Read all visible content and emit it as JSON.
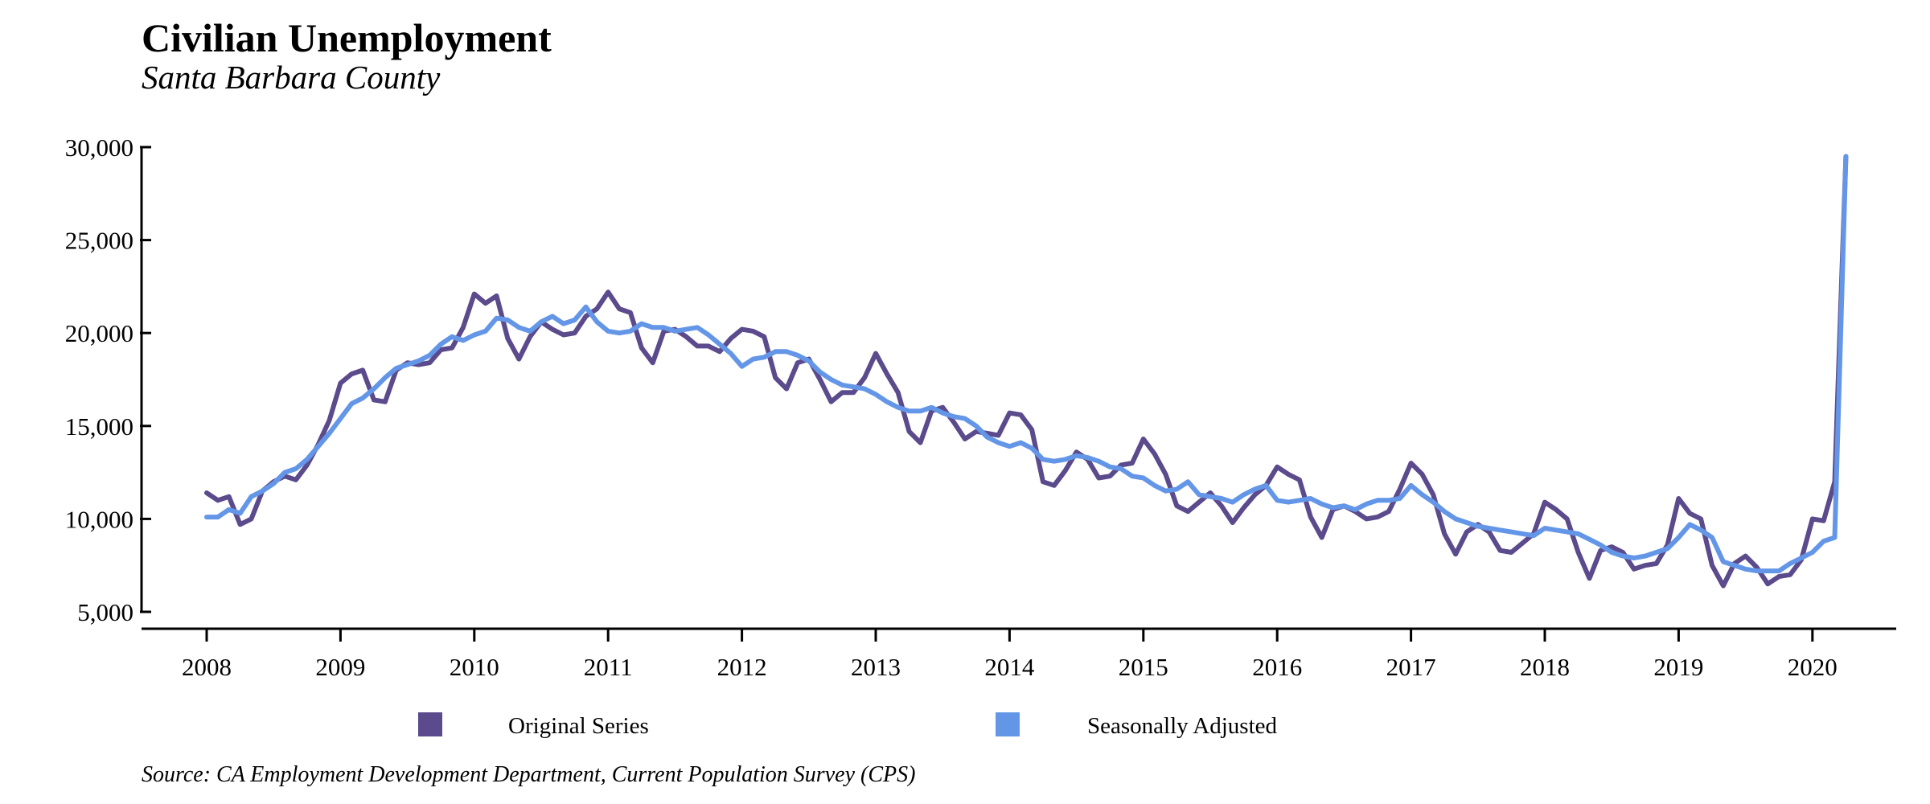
{
  "chart_data": {
    "type": "line",
    "title": "Civilian Unemployment",
    "subtitle": "Santa Barbara County",
    "source": "Source: CA Employment Development Department, Current Population Survey (CPS)",
    "xlabel": "",
    "ylabel": "",
    "ylim": [
      5000,
      30000
    ],
    "yticks": [
      5000,
      10000,
      15000,
      20000,
      25000,
      30000
    ],
    "ytick_labels": [
      "5,000",
      "10,000",
      "15,000",
      "20,000",
      "25,000",
      "30,000"
    ],
    "xlim": [
      2008,
      2020.25
    ],
    "xticks": [
      2008,
      2009,
      2010,
      2011,
      2012,
      2013,
      2014,
      2015,
      2016,
      2017,
      2018,
      2019,
      2020
    ],
    "xtick_labels": [
      "2008",
      "2009",
      "2010",
      "2011",
      "2012",
      "2013",
      "2014",
      "2015",
      "2016",
      "2017",
      "2018",
      "2019",
      "2020"
    ],
    "x_start": "2008-01",
    "x_frequency": "monthly",
    "grid": false,
    "legend_position": "bottom",
    "series": [
      {
        "name": "Original Series",
        "color": "#5b4a8c",
        "values": [
          11400,
          11000,
          11200,
          9700,
          10000,
          11500,
          12000,
          12300,
          12100,
          12900,
          14000,
          15300,
          17300,
          17800,
          18000,
          16400,
          16300,
          18000,
          18400,
          18300,
          18400,
          19100,
          19200,
          20300,
          22100,
          21600,
          22000,
          19700,
          18600,
          19800,
          20600,
          20200,
          19900,
          20000,
          20900,
          21300,
          22200,
          21300,
          21100,
          19200,
          18400,
          20100,
          20200,
          19800,
          19300,
          19300,
          19000,
          19700,
          20200,
          20100,
          19800,
          17600,
          17000,
          18400,
          18600,
          17500,
          16300,
          16800,
          16800,
          17600,
          18900,
          17800,
          16800,
          14700,
          14100,
          15800,
          16000,
          15200,
          14300,
          14700,
          14600,
          14500,
          15700,
          15600,
          14800,
          12000,
          11800,
          12600,
          13600,
          13200,
          12200,
          12300,
          12900,
          13000,
          14300,
          13500,
          12400,
          10700,
          10400,
          10900,
          11400,
          10700,
          9800,
          10600,
          11300,
          11800,
          12800,
          12400,
          12100,
          10100,
          9000,
          10500,
          10700,
          10400,
          10000,
          10100,
          10400,
          11600,
          13000,
          12400,
          11300,
          9200,
          8100,
          9300,
          9700,
          9300,
          8300,
          8200,
          8700,
          9200,
          10900,
          10500,
          10000,
          8200,
          6800,
          8300,
          8500,
          8200,
          7300,
          7500,
          7600,
          8600,
          11100,
          10300,
          10000,
          7500,
          6400,
          7600,
          8000,
          7400,
          6500,
          6900,
          7000,
          7800,
          10000,
          9900,
          12000,
          29500
        ]
      },
      {
        "name": "Seasonally Adjusted",
        "color": "#6496e8",
        "values": [
          10100,
          10100,
          10500,
          10300,
          11200,
          11500,
          11900,
          12500,
          12700,
          13200,
          13900,
          14600,
          15400,
          16200,
          16500,
          17000,
          17600,
          18100,
          18300,
          18500,
          18800,
          19400,
          19800,
          19600,
          19900,
          20100,
          20800,
          20700,
          20300,
          20100,
          20600,
          20900,
          20500,
          20700,
          21400,
          20600,
          20100,
          20000,
          20100,
          20500,
          20300,
          20300,
          20100,
          20200,
          20300,
          19900,
          19400,
          18900,
          18200,
          18600,
          18700,
          19000,
          19000,
          18800,
          18500,
          17900,
          17500,
          17200,
          17100,
          17000,
          16700,
          16300,
          16000,
          15800,
          15800,
          16000,
          15700,
          15500,
          15400,
          15000,
          14400,
          14100,
          13900,
          14100,
          13800,
          13200,
          13100,
          13200,
          13400,
          13300,
          13100,
          12800,
          12700,
          12300,
          12200,
          11800,
          11500,
          11600,
          12000,
          11300,
          11200,
          11100,
          10900,
          11300,
          11600,
          11800,
          11000,
          10900,
          11000,
          11100,
          10800,
          10600,
          10700,
          10500,
          10800,
          11000,
          11000,
          11100,
          11800,
          11300,
          10900,
          10400,
          10000,
          9800,
          9600,
          9500,
          9400,
          9300,
          9200,
          9100,
          9500,
          9400,
          9300,
          9200,
          8900,
          8600,
          8200,
          8000,
          7900,
          8000,
          8200,
          8400,
          9000,
          9700,
          9400,
          9000,
          7700,
          7500,
          7300,
          7200,
          7200,
          7200,
          7600,
          7900,
          8200,
          8800,
          9000,
          29500
        ]
      }
    ]
  }
}
